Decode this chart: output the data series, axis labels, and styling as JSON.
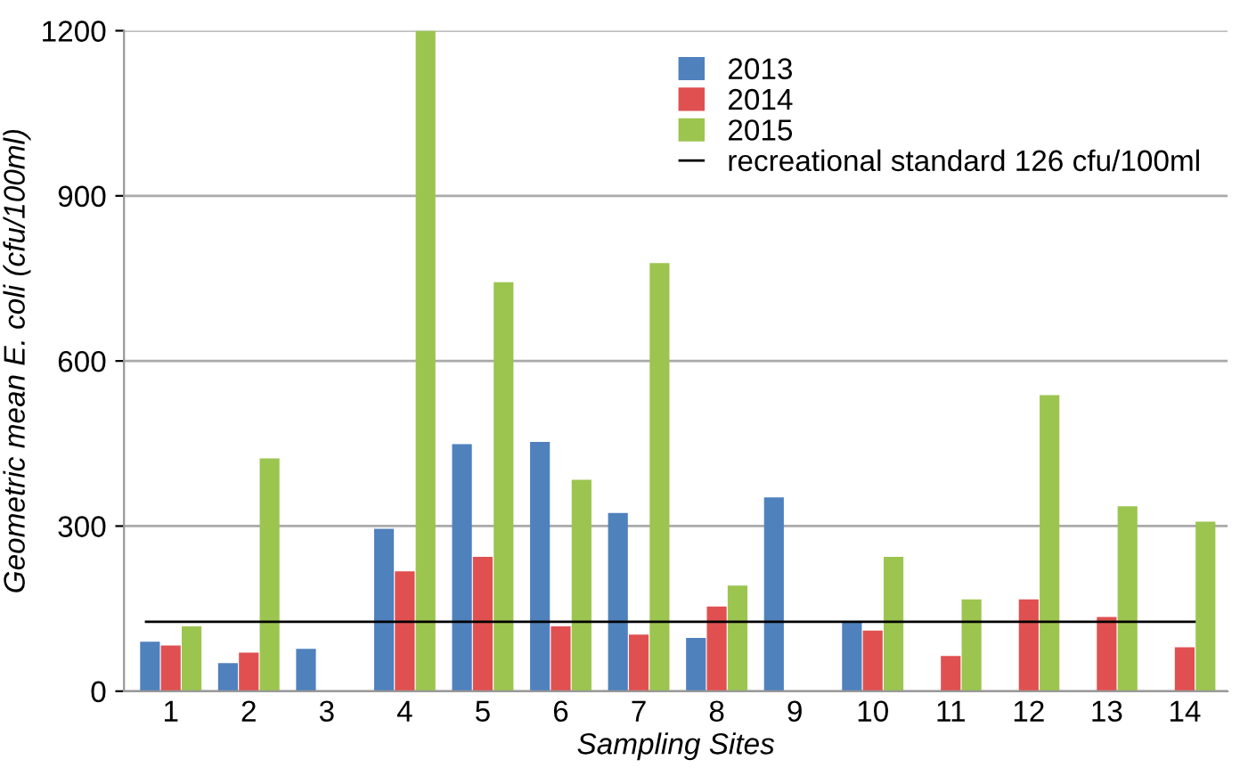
{
  "chart_data": {
    "type": "bar",
    "xlabel": "Sampling Sites",
    "ylabel": "Geometric mean E. coli (cfu/100ml)",
    "categories": [
      "1",
      "2",
      "3",
      "4",
      "5",
      "6",
      "7",
      "8",
      "9",
      "10",
      "11",
      "12",
      "13",
      "14"
    ],
    "series": [
      {
        "name": "2013",
        "color": "#4f81bd",
        "values": [
          90,
          51,
          77,
          295,
          449,
          453,
          324,
          97,
          352,
          127,
          null,
          null,
          null,
          null
        ]
      },
      {
        "name": "2014",
        "color": "#e05050",
        "values": [
          83,
          70,
          null,
          218,
          244,
          118,
          103,
          154,
          null,
          110,
          64,
          167,
          135,
          80
        ]
      },
      {
        "name": "2015",
        "color": "#9bc54f",
        "values": [
          118,
          423,
          null,
          1200,
          743,
          384,
          778,
          192,
          null,
          244,
          167,
          538,
          336,
          308
        ]
      }
    ],
    "ref_lines": [
      {
        "axis": "y",
        "value": 126,
        "label": "recreational standard 126 cfu/100ml",
        "color": "#000000"
      }
    ],
    "ylim": [
      0,
      1200
    ],
    "yticks": [
      0,
      300,
      600,
      900,
      1200
    ],
    "grid": "y",
    "legend": "top right"
  }
}
